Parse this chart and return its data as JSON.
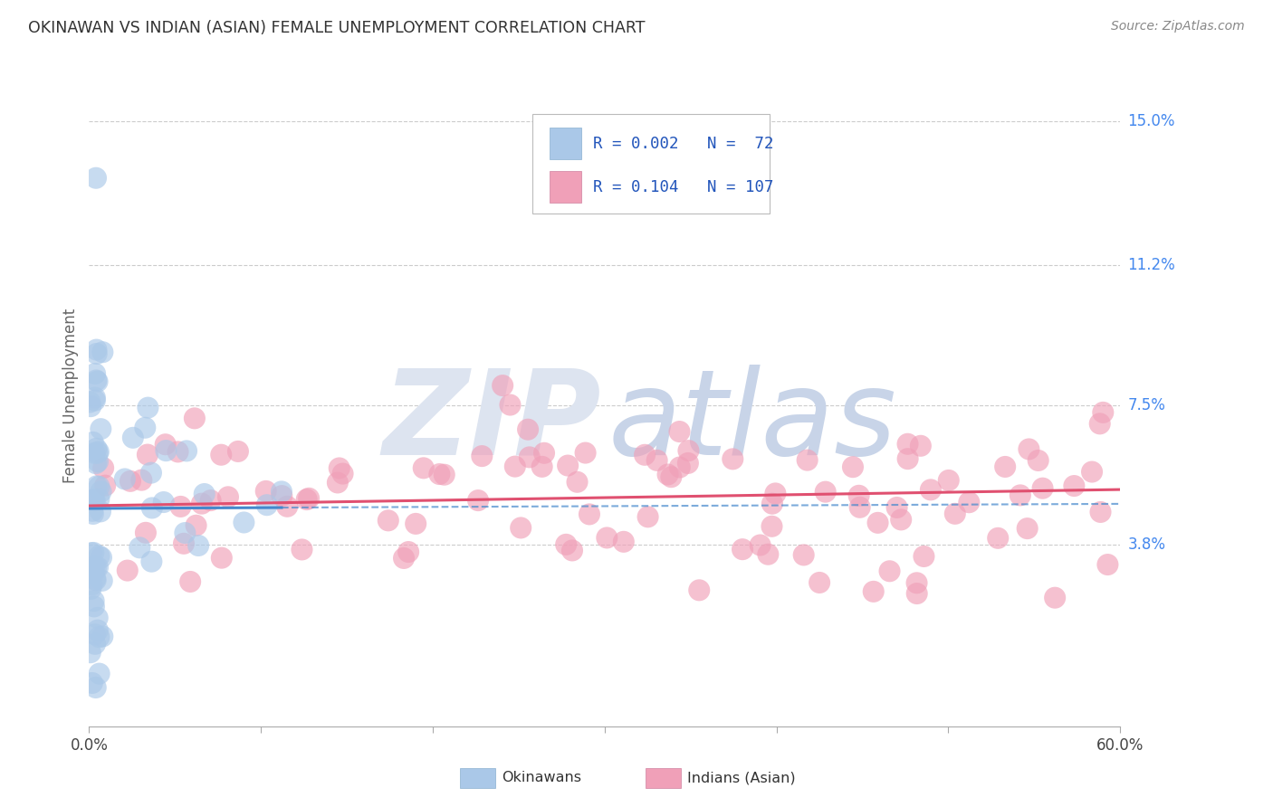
{
  "title": "OKINAWAN VS INDIAN (ASIAN) FEMALE UNEMPLOYMENT CORRELATION CHART",
  "source": "Source: ZipAtlas.com",
  "ylabel": "Female Unemployment",
  "ytick_labels": [
    "15.0%",
    "11.2%",
    "7.5%",
    "3.8%"
  ],
  "ytick_values": [
    0.15,
    0.112,
    0.075,
    0.038
  ],
  "xlim": [
    0.0,
    0.6
  ],
  "ylim": [
    -0.01,
    0.165
  ],
  "legend_r_ok": "0.002",
  "legend_n_ok": "72",
  "legend_r_ind": "0.104",
  "legend_n_ind": "107",
  "background_color": "#ffffff",
  "okinawan_scatter_color": "#aac8e8",
  "okinawan_scatter_edge": "none",
  "indian_scatter_color": "#f0a0b8",
  "indian_scatter_edge": "none",
  "trendline_okinawan_color": "#4488cc",
  "trendline_indian_color": "#e05070",
  "grid_color": "#cccccc",
  "title_color": "#333333",
  "axis_label_color": "#666666",
  "ytick_color": "#4488ee",
  "source_color": "#888888",
  "watermark_zip_color": "#dde4f0",
  "watermark_atlas_color": "#c8d4e8"
}
